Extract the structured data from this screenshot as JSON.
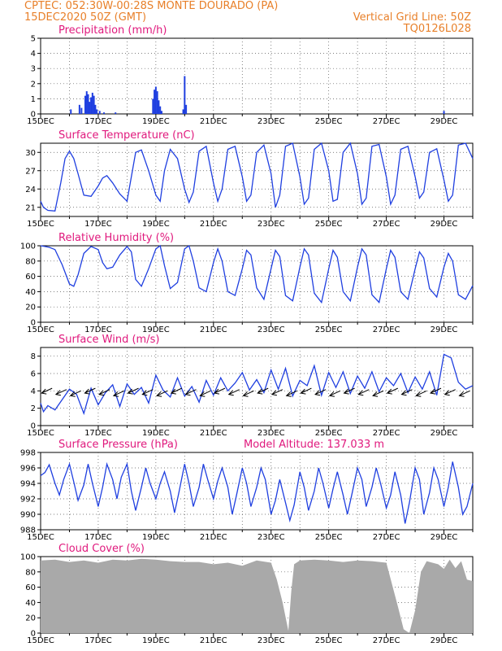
{
  "header": {
    "line1_left": "CPTEC:   052:30W-00:28S   MONTE DOURADO (PA)",
    "line2_left": "15DEC2020 50Z (GMT)",
    "line2_right": "Vertical Grid Line: 50Z",
    "line3_right": "TQ0126L028"
  },
  "colors": {
    "header": "#e8802a",
    "title": "#e0197d",
    "line": "#1f3fe0",
    "cloud": "#a9a9a9",
    "grid": "#000000"
  },
  "x_axis": {
    "ticks": [
      "15DEC",
      "17DEC",
      "19DEC",
      "21DEC",
      "23DEC",
      "25DEC",
      "27DEC",
      "29DEC"
    ],
    "start": "15DEC2020",
    "end": "30DEC2020"
  },
  "chart_data": [
    {
      "type": "bar",
      "title": "Precipitation (mm/h)",
      "ylim": [
        0,
        5
      ],
      "yticks": [
        0,
        1,
        2,
        3,
        4,
        5
      ],
      "x": [
        1.05,
        1.35,
        1.42,
        1.55,
        1.6,
        1.65,
        1.7,
        1.75,
        1.8,
        1.85,
        1.9,
        1.95,
        2.05,
        2.2,
        2.6,
        3.9,
        3.95,
        4.0,
        4.05,
        4.1,
        4.15,
        4.2,
        4.95,
        5.0,
        5.05,
        14.0
      ],
      "values": [
        0.3,
        0.6,
        0.4,
        1.2,
        1.5,
        1.3,
        0.8,
        1.1,
        1.4,
        1.2,
        0.6,
        0.3,
        0.2,
        0.1,
        0.1,
        1.0,
        1.6,
        1.8,
        1.5,
        0.9,
        0.5,
        0.2,
        0.3,
        2.5,
        0.6,
        0.2
      ]
    },
    {
      "type": "line",
      "title": "Surface Temperature (nC)",
      "ylim": [
        19.5,
        31.5
      ],
      "yticks": [
        21,
        24,
        27,
        30
      ],
      "x": [
        0,
        0.1,
        0.25,
        0.5,
        0.7,
        0.85,
        1.0,
        1.15,
        1.3,
        1.5,
        1.75,
        2.0,
        2.15,
        2.3,
        2.5,
        2.75,
        3.0,
        3.15,
        3.3,
        3.5,
        3.75,
        4.0,
        4.15,
        4.3,
        4.5,
        4.75,
        5.0,
        5.15,
        5.3,
        5.5,
        5.75,
        6.0,
        6.15,
        6.3,
        6.5,
        6.75,
        7.0,
        7.15,
        7.3,
        7.5,
        7.75,
        8.0,
        8.15,
        8.3,
        8.5,
        8.75,
        9.0,
        9.15,
        9.3,
        9.5,
        9.75,
        10.0,
        10.15,
        10.3,
        10.5,
        10.75,
        11.0,
        11.15,
        11.3,
        11.5,
        11.75,
        12.0,
        12.15,
        12.3,
        12.5,
        12.75,
        13.0,
        13.15,
        13.3,
        13.5,
        13.75,
        14.0,
        14.15,
        14.3,
        14.5,
        14.75,
        15.0
      ],
      "values": [
        22.0,
        21.0,
        20.5,
        20.4,
        25.0,
        29.0,
        30.2,
        29.0,
        26.5,
        23.0,
        22.8,
        24.5,
        25.8,
        26.2,
        25.0,
        23.2,
        22.0,
        26.0,
        30.0,
        30.4,
        27.0,
        23.0,
        22.0,
        27.0,
        30.5,
        29.0,
        24.0,
        21.8,
        23.5,
        30.2,
        31.0,
        25.0,
        22.0,
        24.0,
        30.5,
        31.0,
        26.0,
        22.0,
        23.0,
        30.0,
        31.2,
        26.5,
        21.0,
        23.0,
        31.0,
        31.5,
        26.0,
        21.5,
        22.5,
        30.5,
        31.5,
        27.0,
        22.0,
        22.3,
        30.0,
        31.5,
        26.5,
        21.5,
        22.5,
        31.0,
        31.3,
        26.0,
        21.5,
        23.0,
        30.5,
        31.0,
        26.0,
        22.5,
        23.5,
        30.0,
        30.6,
        25.5,
        22.0,
        23.0,
        31.2,
        31.5,
        29.0
      ]
    },
    {
      "type": "line",
      "title": "Relative Humidity (%)",
      "ylim": [
        0,
        100
      ],
      "yticks": [
        0,
        20,
        40,
        60,
        80,
        100
      ],
      "x": [
        0,
        0.15,
        0.3,
        0.5,
        0.75,
        1.0,
        1.15,
        1.3,
        1.5,
        1.75,
        2.0,
        2.15,
        2.3,
        2.5,
        2.75,
        3.0,
        3.15,
        3.3,
        3.5,
        3.75,
        4.0,
        4.15,
        4.3,
        4.5,
        4.75,
        5.0,
        5.15,
        5.3,
        5.5,
        5.75,
        6.0,
        6.15,
        6.3,
        6.5,
        6.75,
        7.0,
        7.15,
        7.3,
        7.5,
        7.75,
        8.0,
        8.15,
        8.3,
        8.5,
        8.75,
        9.0,
        9.15,
        9.3,
        9.5,
        9.75,
        10.0,
        10.15,
        10.3,
        10.5,
        10.75,
        11.0,
        11.15,
        11.3,
        11.5,
        11.75,
        12.0,
        12.15,
        12.3,
        12.5,
        12.75,
        13.0,
        13.15,
        13.3,
        13.5,
        13.75,
        14.0,
        14.15,
        14.3,
        14.5,
        14.75,
        15.0
      ],
      "values": [
        100,
        99,
        98,
        95,
        75,
        50,
        47,
        62,
        90,
        99,
        95,
        78,
        70,
        72,
        88,
        99,
        92,
        56,
        47,
        70,
        96,
        100,
        74,
        44,
        52,
        96,
        100,
        80,
        45,
        40,
        78,
        96,
        80,
        40,
        35,
        70,
        94,
        88,
        45,
        30,
        70,
        94,
        86,
        35,
        28,
        72,
        96,
        88,
        38,
        26,
        70,
        94,
        85,
        40,
        28,
        72,
        96,
        88,
        36,
        26,
        70,
        94,
        85,
        40,
        30,
        70,
        92,
        84,
        44,
        33,
        72,
        90,
        80,
        36,
        30,
        48
      ]
    },
    {
      "type": "line",
      "title": "Surface Wind (m/s)",
      "ylim": [
        0,
        9
      ],
      "yticks": [
        0,
        2,
        4,
        6,
        8
      ],
      "x": [
        0,
        0.1,
        0.25,
        0.5,
        0.75,
        1.0,
        1.25,
        1.5,
        1.75,
        2.0,
        2.25,
        2.5,
        2.75,
        3.0,
        3.25,
        3.5,
        3.75,
        4.0,
        4.25,
        4.5,
        4.75,
        5.0,
        5.25,
        5.5,
        5.75,
        6.0,
        6.25,
        6.5,
        6.75,
        7.0,
        7.25,
        7.5,
        7.75,
        8.0,
        8.25,
        8.5,
        8.75,
        9.0,
        9.25,
        9.5,
        9.75,
        10.0,
        10.25,
        10.5,
        10.75,
        11.0,
        11.25,
        11.5,
        11.75,
        12.0,
        12.25,
        12.5,
        12.75,
        13.0,
        13.25,
        13.5,
        13.75,
        14.0,
        14.25,
        14.5,
        14.75,
        15.0
      ],
      "values": [
        2.6,
        1.6,
        2.3,
        1.8,
        3.0,
        4.2,
        3.6,
        1.4,
        4.3,
        2.4,
        3.8,
        4.7,
        2.2,
        4.8,
        3.6,
        4.4,
        2.6,
        5.8,
        4.1,
        3.3,
        5.5,
        3.4,
        4.5,
        2.7,
        5.2,
        3.5,
        5.5,
        4.0,
        4.9,
        6.1,
        4.1,
        5.3,
        3.8,
        6.4,
        4.2,
        6.6,
        3.4,
        5.2,
        4.6,
        6.9,
        3.5,
        6.1,
        4.4,
        6.2,
        3.7,
        5.7,
        4.3,
        6.2,
        3.9,
        5.5,
        4.6,
        6.0,
        3.8,
        5.6,
        4.2,
        6.2,
        3.5,
        8.2,
        7.8,
        5.0,
        4.2,
        4.6
      ]
    },
    {
      "type": "line",
      "title": "Surface Pressure (hPa)",
      "annotation": "Model Altitude: 137.033 m",
      "ylim": [
        988,
        998
      ],
      "yticks": [
        988,
        990,
        992,
        994,
        996,
        998
      ],
      "x": [
        0,
        0.15,
        0.3,
        0.5,
        0.65,
        0.8,
        1.0,
        1.15,
        1.3,
        1.5,
        1.65,
        1.8,
        2.0,
        2.15,
        2.3,
        2.5,
        2.65,
        2.8,
        3.0,
        3.15,
        3.3,
        3.5,
        3.65,
        3.8,
        4.0,
        4.15,
        4.3,
        4.5,
        4.65,
        4.8,
        5.0,
        5.15,
        5.3,
        5.5,
        5.65,
        5.8,
        6.0,
        6.15,
        6.3,
        6.5,
        6.65,
        6.8,
        7.0,
        7.15,
        7.3,
        7.5,
        7.65,
        7.8,
        8.0,
        8.15,
        8.3,
        8.5,
        8.65,
        8.8,
        9.0,
        9.15,
        9.3,
        9.5,
        9.65,
        9.8,
        10.0,
        10.15,
        10.3,
        10.5,
        10.65,
        10.8,
        11.0,
        11.15,
        11.3,
        11.5,
        11.65,
        11.8,
        12.0,
        12.15,
        12.3,
        12.5,
        12.65,
        12.8,
        13.0,
        13.15,
        13.3,
        13.5,
        13.65,
        13.8,
        14.0,
        14.15,
        14.3,
        14.5,
        14.65,
        14.8,
        15.0
      ],
      "values": [
        995.0,
        995.4,
        996.4,
        994.0,
        992.5,
        994.5,
        996.5,
        994.2,
        991.8,
        993.8,
        996.5,
        994.0,
        991.0,
        993.5,
        996.5,
        994.5,
        992.0,
        994.8,
        996.5,
        993.0,
        990.5,
        993.5,
        996.0,
        994.0,
        992.0,
        994.0,
        995.5,
        993.0,
        990.2,
        992.8,
        996.5,
        994.0,
        991.0,
        993.5,
        996.5,
        994.5,
        992.0,
        994.3,
        996.0,
        993.5,
        990.0,
        992.5,
        996.0,
        994.0,
        991.0,
        993.5,
        996.0,
        994.5,
        990.0,
        991.8,
        994.5,
        991.5,
        989.2,
        991.2,
        995.5,
        993.5,
        990.5,
        993.0,
        996.0,
        994.0,
        990.8,
        993.3,
        995.5,
        992.5,
        990.0,
        992.5,
        996.0,
        994.5,
        991.0,
        993.5,
        996.0,
        994.0,
        990.8,
        992.5,
        995.5,
        992.5,
        988.8,
        991.5,
        996.0,
        994.5,
        990.0,
        992.8,
        996.0,
        994.5,
        991.0,
        993.5,
        996.8,
        993.5,
        990.0,
        991.0,
        994.0
      ]
    },
    {
      "type": "area",
      "title": "Cloud Cover (%)",
      "ylim": [
        0,
        100
      ],
      "yticks": [
        0,
        20,
        40,
        60,
        80,
        100
      ],
      "x": [
        0,
        0.5,
        1.0,
        1.5,
        2.0,
        2.5,
        3.0,
        3.5,
        4.0,
        4.5,
        5.0,
        5.5,
        6.0,
        6.5,
        7.0,
        7.5,
        8.0,
        8.2,
        8.4,
        8.6,
        8.7,
        8.8,
        9.0,
        9.5,
        10.0,
        10.5,
        11.0,
        11.5,
        12.0,
        12.4,
        12.6,
        12.8,
        13.0,
        13.2,
        13.4,
        13.6,
        13.8,
        14.0,
        14.2,
        14.4,
        14.6,
        14.8,
        15.0
      ],
      "values": [
        95,
        96,
        93,
        95,
        92,
        96,
        95,
        97,
        96,
        94,
        93,
        93,
        90,
        92,
        88,
        95,
        92,
        70,
        40,
        3,
        55,
        90,
        95,
        96,
        95,
        93,
        95,
        94,
        92,
        35,
        5,
        0,
        30,
        80,
        94,
        92,
        90,
        84,
        96,
        85,
        94,
        70,
        68
      ]
    }
  ]
}
